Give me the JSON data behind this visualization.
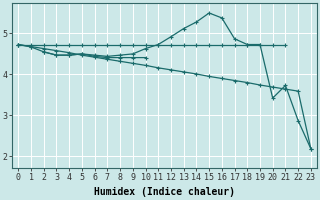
{
  "bg_color": "#cce8e8",
  "grid_color": "#ffffff",
  "line_color": "#1a6b6b",
  "xlabel": "Humidex (Indice chaleur)",
  "xlabel_fontsize": 7,
  "tick_fontsize": 6,
  "xlim": [
    -0.5,
    23.5
  ],
  "ylim": [
    1.7,
    5.75
  ],
  "yticks": [
    2,
    3,
    4,
    5
  ],
  "xticks": [
    0,
    1,
    2,
    3,
    4,
    5,
    6,
    7,
    8,
    9,
    10,
    11,
    12,
    13,
    14,
    15,
    16,
    17,
    18,
    19,
    20,
    21,
    22,
    23
  ],
  "line1_x": [
    0,
    1,
    2,
    3,
    4,
    5,
    6,
    7,
    8,
    9,
    10,
    11,
    12,
    13,
    14,
    15,
    16,
    17,
    18,
    19,
    20,
    21
  ],
  "line1_y": [
    4.73,
    4.73,
    4.73,
    4.73,
    4.73,
    4.73,
    4.73,
    4.73,
    4.73,
    4.73,
    4.73,
    4.73,
    4.73,
    4.73,
    4.73,
    4.73,
    4.73,
    4.73,
    4.73,
    4.73,
    4.73,
    4.73
  ],
  "line2_x": [
    0,
    1,
    2,
    3,
    4,
    5,
    6,
    7,
    8,
    9,
    10,
    11,
    12,
    13,
    14,
    15,
    16,
    17,
    18,
    19,
    20,
    21,
    22,
    23
  ],
  "line2_y": [
    4.73,
    4.67,
    4.55,
    4.47,
    4.47,
    4.5,
    4.47,
    4.44,
    4.47,
    4.5,
    4.63,
    4.73,
    4.92,
    5.12,
    5.28,
    5.5,
    5.38,
    4.87,
    4.73,
    4.73,
    3.42,
    3.73,
    2.87,
    2.18
  ],
  "line3_x": [
    2,
    3,
    4,
    5,
    6,
    7,
    8,
    9,
    10
  ],
  "line3_y": [
    4.55,
    4.47,
    4.47,
    4.5,
    4.44,
    4.41,
    4.41,
    4.41,
    4.41
  ],
  "line4_x": [
    0,
    1,
    2,
    3,
    4,
    5,
    6,
    7,
    8,
    9,
    10,
    11,
    12,
    13,
    14,
    15,
    16,
    17,
    18,
    19,
    20,
    21,
    22,
    23
  ],
  "line4_y": [
    4.73,
    4.68,
    4.63,
    4.58,
    4.53,
    4.47,
    4.42,
    4.37,
    4.32,
    4.27,
    4.22,
    4.16,
    4.11,
    4.06,
    4.01,
    3.95,
    3.9,
    3.85,
    3.8,
    3.74,
    3.69,
    3.64,
    3.59,
    2.18
  ]
}
